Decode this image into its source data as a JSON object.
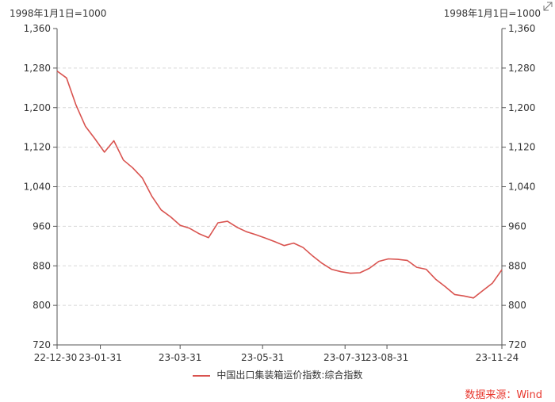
{
  "header": {
    "unit_left": "1998年1月1日=1000",
    "unit_right": "1998年1月1日=1000"
  },
  "icons": {
    "expand": "expand-arrows-icon"
  },
  "legend": {
    "label": "中国出口集装箱运价指数:综合指数",
    "color": "#d9534f"
  },
  "source": "数据来源：Wind",
  "chart_data": {
    "type": "line",
    "title": "",
    "xlabel": "",
    "ylabel": "",
    "ylim": [
      720,
      1360
    ],
    "yticks": [
      720,
      800,
      880,
      960,
      1040,
      1120,
      1200,
      1280,
      1360
    ],
    "ytick_labels": [
      "720",
      "800",
      "880",
      "960",
      "1,040",
      "1,120",
      "1,200",
      "1,280",
      "1,360"
    ],
    "xlim": [
      "2022-12-30",
      "2023-11-24"
    ],
    "xtick_labels": [
      {
        "date": "2022-12-30",
        "label": "22-12-30"
      },
      {
        "date": "2023-01-31",
        "label": "23-01-31"
      },
      {
        "date": "2023-03-31",
        "label": "23-03-31"
      },
      {
        "date": "2023-05-31",
        "label": "23-05-31"
      },
      {
        "date": "2023-07-31",
        "label": "23-07-31"
      },
      {
        "date": "2023-08-31",
        "label": "23-08-31"
      },
      {
        "date": "2023-11-24",
        "label": "23-11-24"
      }
    ],
    "grid": true,
    "legend_position": "bottom",
    "series": [
      {
        "name": "中国出口集装箱运价指数:综合指数",
        "color": "#d9534f",
        "x": [
          "2022-12-30",
          "2023-01-06",
          "2023-01-13",
          "2023-01-20",
          "2023-01-27",
          "2023-02-03",
          "2023-02-10",
          "2023-02-17",
          "2023-02-24",
          "2023-03-03",
          "2023-03-10",
          "2023-03-17",
          "2023-03-24",
          "2023-03-31",
          "2023-04-07",
          "2023-04-14",
          "2023-04-21",
          "2023-04-28",
          "2023-05-05",
          "2023-05-12",
          "2023-05-19",
          "2023-05-26",
          "2023-06-02",
          "2023-06-09",
          "2023-06-16",
          "2023-06-23",
          "2023-06-30",
          "2023-07-07",
          "2023-07-14",
          "2023-07-21",
          "2023-07-28",
          "2023-08-04",
          "2023-08-11",
          "2023-08-18",
          "2023-08-25",
          "2023-09-01",
          "2023-09-08",
          "2023-09-15",
          "2023-09-22",
          "2023-09-29",
          "2023-10-06",
          "2023-10-13",
          "2023-10-20",
          "2023-10-27",
          "2023-11-03",
          "2023-11-10",
          "2023-11-17",
          "2023-11-24"
        ],
        "values": [
          1274,
          1260,
          1205,
          1162,
          1137,
          1110,
          1133,
          1094,
          1078,
          1058,
          1021,
          993,
          979,
          962,
          956,
          945,
          937,
          967,
          970,
          958,
          949,
          943,
          936,
          929,
          921,
          926,
          917,
          900,
          885,
          873,
          868,
          865,
          866,
          875,
          889,
          894,
          893,
          891,
          877,
          873,
          853,
          838,
          822,
          819,
          815,
          830,
          845,
          872
        ]
      }
    ]
  }
}
